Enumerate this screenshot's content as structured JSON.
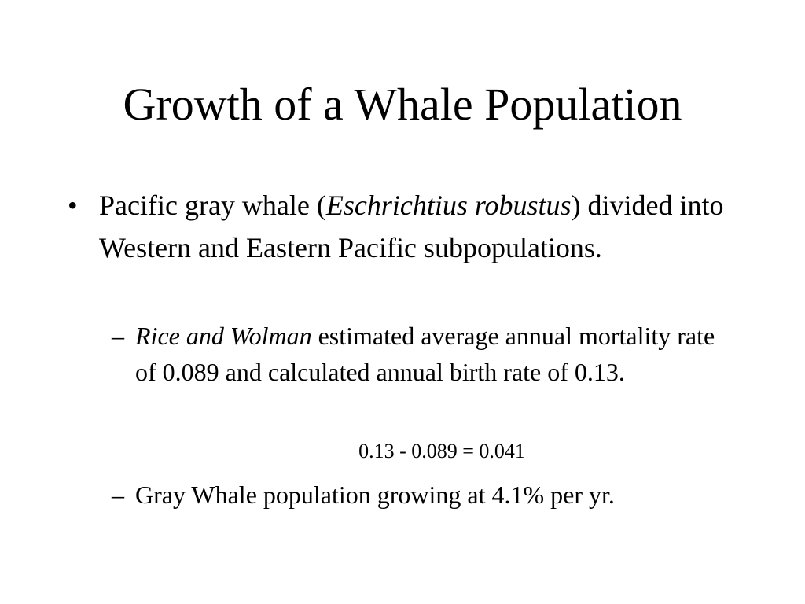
{
  "slide": {
    "title": "Growth of a Whale Population",
    "bullet": {
      "marker": "•",
      "text_before": "Pacific gray whale (",
      "species": "Eschrichtius robustus",
      "text_after": ") divided into Western and Eastern Pacific subpopulations."
    },
    "sub_bullets": [
      {
        "marker": "–",
        "italic": "Rice and Wolman",
        "text": " estimated average annual mortality rate of 0.089 and calculated annual birth rate of 0.13."
      },
      {
        "marker": "–",
        "text": "Gray Whale population growing at 4.1% per yr."
      }
    ],
    "equation": "0.13 - 0.089 = 0.041"
  }
}
